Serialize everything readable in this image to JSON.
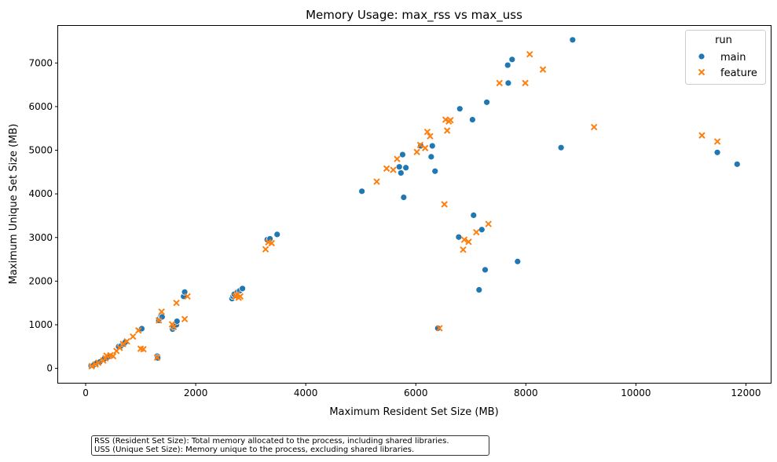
{
  "chart_data": {
    "type": "scatter",
    "title": "Memory Usage: max_rss vs max_uss",
    "xlabel": "Maximum Resident Set Size (MB)",
    "ylabel": "Maximum Unique Set Size (MB)",
    "xlim": [
      -500,
      12450
    ],
    "ylim": [
      -330,
      7850
    ],
    "xticks": [
      0,
      2000,
      4000,
      6000,
      8000,
      10000,
      12000
    ],
    "xtick_labels": [
      "0",
      "2000",
      "4000",
      "6000",
      "8000",
      "10000",
      "12000"
    ],
    "yticks": [
      0,
      1000,
      2000,
      3000,
      4000,
      5000,
      6000,
      7000
    ],
    "ytick_labels": [
      "0",
      "1000",
      "2000",
      "3000",
      "4000",
      "5000",
      "6000",
      "7000"
    ],
    "grid": false,
    "legend": {
      "title": "run",
      "position": "top-right"
    },
    "series": [
      {
        "name": "main",
        "marker": "circle",
        "color": "#1f77b4",
        "points": [
          [
            100,
            60
          ],
          [
            130,
            70
          ],
          [
            150,
            80
          ],
          [
            200,
            120
          ],
          [
            260,
            150
          ],
          [
            340,
            220
          ],
          [
            400,
            260
          ],
          [
            600,
            500
          ],
          [
            650,
            520
          ],
          [
            700,
            560
          ],
          [
            720,
            600
          ],
          [
            1000,
            900
          ],
          [
            1020,
            910
          ],
          [
            1300,
            280
          ],
          [
            1310,
            240
          ],
          [
            1330,
            1100
          ],
          [
            1350,
            1150
          ],
          [
            1370,
            1200
          ],
          [
            1390,
            1180
          ],
          [
            1580,
            900
          ],
          [
            1600,
            950
          ],
          [
            1650,
            1000
          ],
          [
            1660,
            1080
          ],
          [
            1780,
            1650
          ],
          [
            1800,
            1750
          ],
          [
            2660,
            1600
          ],
          [
            2680,
            1650
          ],
          [
            2700,
            1700
          ],
          [
            2760,
            1750
          ],
          [
            2800,
            1780
          ],
          [
            2850,
            1830
          ],
          [
            3300,
            2950
          ],
          [
            3350,
            2970
          ],
          [
            3480,
            3070
          ],
          [
            5020,
            4060
          ],
          [
            5700,
            4620
          ],
          [
            5730,
            4480
          ],
          [
            5760,
            4900
          ],
          [
            5780,
            3920
          ],
          [
            5820,
            4600
          ],
          [
            6090,
            5100
          ],
          [
            6280,
            4850
          ],
          [
            6300,
            5100
          ],
          [
            6350,
            4520
          ],
          [
            6400,
            920
          ],
          [
            6800,
            5950
          ],
          [
            7030,
            5700
          ],
          [
            7050,
            3510
          ],
          [
            6780,
            3010
          ],
          [
            7200,
            3180
          ],
          [
            7260,
            2260
          ],
          [
            7290,
            6100
          ],
          [
            7150,
            1800
          ],
          [
            7670,
            6950
          ],
          [
            7680,
            6540
          ],
          [
            7750,
            7080
          ],
          [
            7850,
            2450
          ],
          [
            8640,
            5060
          ],
          [
            8850,
            7530
          ],
          [
            11480,
            4950
          ],
          [
            11840,
            4680
          ]
        ]
      },
      {
        "name": "feature",
        "marker": "x",
        "color": "#ff7f0e",
        "points": [
          [
            110,
            50
          ],
          [
            180,
            90
          ],
          [
            230,
            130
          ],
          [
            320,
            180
          ],
          [
            360,
            230
          ],
          [
            380,
            290
          ],
          [
            450,
            300
          ],
          [
            500,
            280
          ],
          [
            560,
            400
          ],
          [
            620,
            470
          ],
          [
            680,
            560
          ],
          [
            750,
            620
          ],
          [
            860,
            730
          ],
          [
            960,
            870
          ],
          [
            1000,
            450
          ],
          [
            1050,
            440
          ],
          [
            1300,
            250
          ],
          [
            1330,
            1100
          ],
          [
            1380,
            1300
          ],
          [
            1570,
            1010
          ],
          [
            1600,
            950
          ],
          [
            1650,
            1500
          ],
          [
            1800,
            1130
          ],
          [
            1850,
            1650
          ],
          [
            2720,
            1650
          ],
          [
            2750,
            1700
          ],
          [
            2780,
            1620
          ],
          [
            2810,
            1650
          ],
          [
            3270,
            2730
          ],
          [
            3320,
            2890
          ],
          [
            3380,
            2870
          ],
          [
            5290,
            4280
          ],
          [
            5470,
            4580
          ],
          [
            5590,
            4550
          ],
          [
            5660,
            4800
          ],
          [
            6020,
            4960
          ],
          [
            6080,
            5120
          ],
          [
            6170,
            5050
          ],
          [
            6210,
            5420
          ],
          [
            6260,
            5320
          ],
          [
            6430,
            920
          ],
          [
            6520,
            3760
          ],
          [
            6540,
            5700
          ],
          [
            6570,
            5450
          ],
          [
            6600,
            5660
          ],
          [
            6630,
            5690
          ],
          [
            6860,
            2720
          ],
          [
            6880,
            2950
          ],
          [
            6960,
            2900
          ],
          [
            7100,
            3120
          ],
          [
            7320,
            3310
          ],
          [
            7520,
            6540
          ],
          [
            7990,
            6540
          ],
          [
            8070,
            7200
          ],
          [
            8310,
            6850
          ],
          [
            9240,
            5530
          ],
          [
            11200,
            5340
          ],
          [
            11480,
            5200
          ]
        ]
      }
    ]
  },
  "notes": [
    "RSS (Resident Set Size): Total memory allocated to the process, including shared libraries.",
    "USS (Unique Set Size): Memory unique to the process, excluding shared libraries."
  ]
}
